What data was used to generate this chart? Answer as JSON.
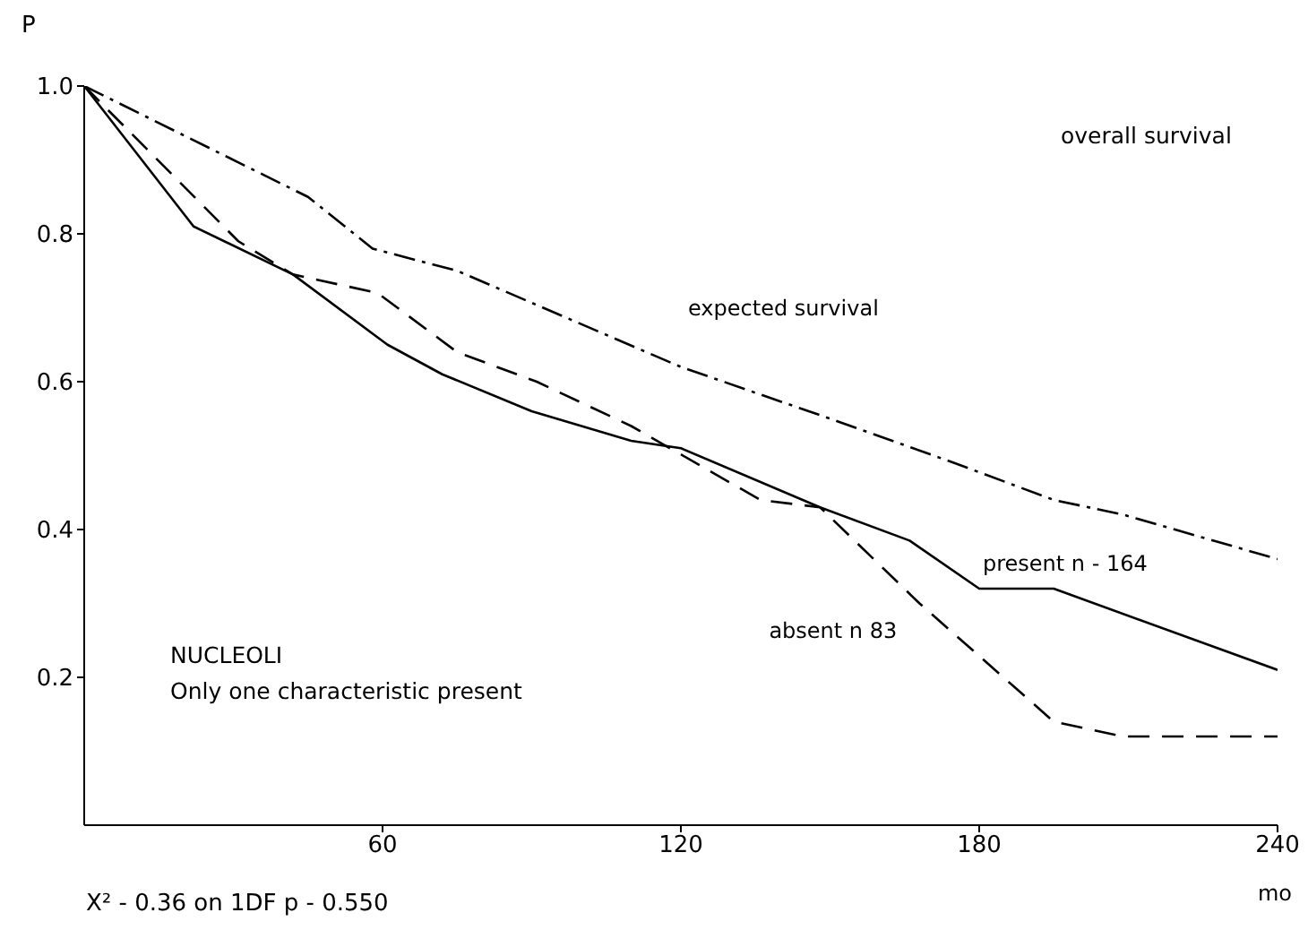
{
  "chart_data": {
    "type": "line",
    "xlabel": "mo",
    "ylabel": "P",
    "xlim": [
      0,
      240
    ],
    "xticks": [
      60,
      120,
      180,
      240
    ],
    "ylim": [
      0,
      1.0
    ],
    "yticks": [
      0.2,
      0.4,
      0.6,
      0.8,
      {
        "value": 1.0,
        "label": "1.0"
      }
    ],
    "marker": "none",
    "series": [
      {
        "name": "expected survival",
        "color": "#000000",
        "line_style": "dashdot",
        "x": [
          0,
          45,
          58,
          75,
          120,
          150,
          175,
          195,
          209,
          240
        ],
        "values": [
          1.0,
          0.85,
          0.78,
          0.75,
          0.62,
          0.55,
          0.49,
          0.44,
          0.42,
          0.36
        ]
      },
      {
        "name": "present n - 164",
        "color": "#000000",
        "line_style": "solid",
        "x": [
          0,
          22,
          42,
          61,
          72,
          90,
          110,
          120,
          148,
          166,
          180,
          195,
          240
        ],
        "values": [
          1.0,
          0.81,
          0.745,
          0.65,
          0.61,
          0.56,
          0.52,
          0.51,
          0.43,
          0.385,
          0.32,
          0.32,
          0.21
        ]
      },
      {
        "name": "absent n 83",
        "color": "#000000",
        "line_style": "dashed",
        "x": [
          0,
          31,
          42,
          59,
          75,
          91,
          110,
          136,
          148,
          168,
          195,
          209,
          240
        ],
        "values": [
          1.0,
          0.79,
          0.745,
          0.72,
          0.64,
          0.6,
          0.54,
          0.44,
          0.43,
          0.3,
          0.14,
          0.12,
          0.12
        ]
      }
    ],
    "annotations": [
      "overall survival",
      "NUCLEOLI",
      "Only one characteristic present",
      "X² - 0.36 on 1DF p - 0.550"
    ]
  }
}
